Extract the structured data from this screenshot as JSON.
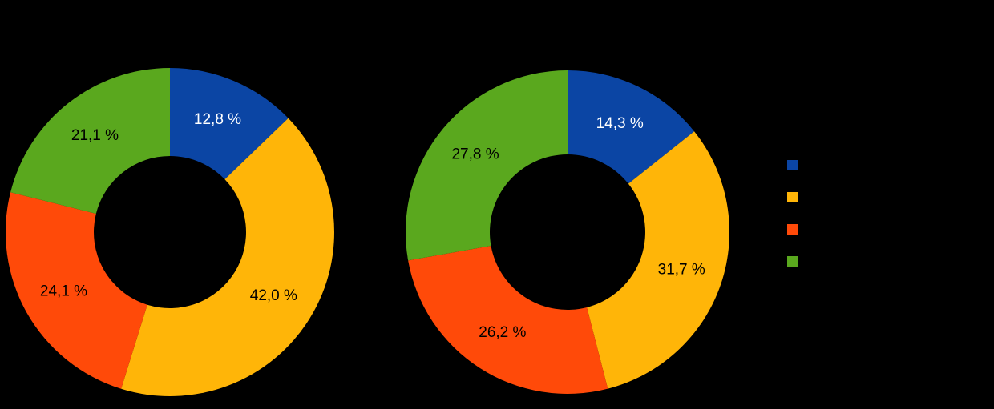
{
  "chart_data": [
    {
      "type": "pie",
      "variant": "donut",
      "position": "left",
      "labels": [
        "12,8 %",
        "42,0 %",
        "24,1 %",
        "21,1 %"
      ],
      "values": [
        12.8,
        42.0,
        24.1,
        21.1
      ],
      "colors": [
        "#0b45a4",
        "#ffb508",
        "#ff4a09",
        "#5aa81e"
      ],
      "label_colors": [
        "#ffffff",
        "#000000",
        "#000000",
        "#000000"
      ],
      "start_angle_deg": 0,
      "direction": "clockwise",
      "legend_position": "right"
    },
    {
      "type": "pie",
      "variant": "donut",
      "position": "right",
      "labels": [
        "14,3 %",
        "31,7 %",
        "26,2 %",
        "27,8 %"
      ],
      "values": [
        14.3,
        31.7,
        26.2,
        27.8
      ],
      "colors": [
        "#0b45a4",
        "#ffb508",
        "#ff4a09",
        "#5aa81e"
      ],
      "label_colors": [
        "#ffffff",
        "#000000",
        "#000000",
        "#000000"
      ],
      "start_angle_deg": 0,
      "direction": "clockwise",
      "legend_position": "right"
    }
  ],
  "legend": {
    "items": [
      {
        "color": "#0b45a4",
        "label": ""
      },
      {
        "color": "#ffb508",
        "label": ""
      },
      {
        "color": "#ff4a09",
        "label": ""
      },
      {
        "color": "#5aa81e",
        "label": ""
      }
    ]
  },
  "background_color": "#000000"
}
